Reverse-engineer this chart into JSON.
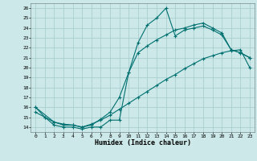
{
  "title": "",
  "xlabel": "Humidex (Indice chaleur)",
  "bg_color": "#cce8e8",
  "grid_color": "#aacece",
  "line_color": "#007070",
  "xlim": [
    -0.5,
    23.5
  ],
  "ylim": [
    13.5,
    26.5
  ],
  "xticks": [
    0,
    1,
    2,
    3,
    4,
    5,
    6,
    7,
    8,
    9,
    10,
    11,
    12,
    13,
    14,
    15,
    16,
    17,
    18,
    19,
    20,
    21,
    22,
    23
  ],
  "yticks": [
    14,
    15,
    16,
    17,
    18,
    19,
    20,
    21,
    22,
    23,
    24,
    25,
    26
  ],
  "line1_x": [
    0,
    1,
    2,
    3,
    4,
    5,
    6,
    7,
    8,
    9,
    10,
    11,
    12,
    13,
    14,
    15,
    16,
    17,
    18,
    19,
    20,
    21,
    22,
    23
  ],
  "line1_y": [
    16,
    15,
    14.2,
    14,
    14,
    13.8,
    14,
    14,
    14.7,
    14.7,
    19.5,
    22.5,
    24.3,
    25,
    26,
    23.2,
    23.8,
    24,
    24.2,
    23.8,
    23.3,
    21.8,
    21.5,
    21
  ],
  "line2_x": [
    0,
    2,
    3,
    4,
    5,
    6,
    7,
    8,
    9,
    10,
    11,
    12,
    13,
    14,
    15,
    16,
    17,
    18,
    19,
    20,
    21,
    22,
    23
  ],
  "line2_y": [
    16,
    14.5,
    14.2,
    14.2,
    14.0,
    14.2,
    14.8,
    15.5,
    17.0,
    19.5,
    21.5,
    22.2,
    22.8,
    23.3,
    23.8,
    24.0,
    24.3,
    24.5,
    24.0,
    23.5,
    21.8,
    21.5,
    21.0
  ],
  "line3_x": [
    0,
    1,
    2,
    3,
    4,
    5,
    6,
    7,
    8,
    9,
    10,
    11,
    12,
    13,
    14,
    15,
    16,
    17,
    18,
    19,
    20,
    21,
    22,
    23
  ],
  "line3_y": [
    15.5,
    15.0,
    14.5,
    14.3,
    14.2,
    14.0,
    14.3,
    14.7,
    15.2,
    15.8,
    16.4,
    17.0,
    17.6,
    18.2,
    18.8,
    19.3,
    19.9,
    20.4,
    20.9,
    21.2,
    21.5,
    21.7,
    21.8,
    20.0
  ]
}
